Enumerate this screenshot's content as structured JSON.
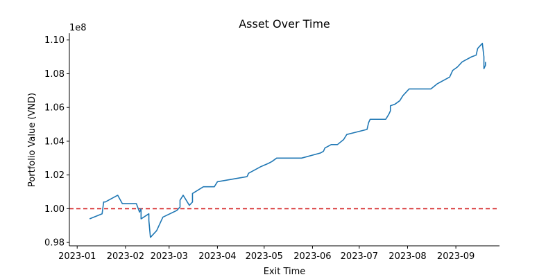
{
  "chart_data": {
    "type": "line",
    "title": "Asset Over Time",
    "xlabel": "Exit Time",
    "ylabel": "Portfolio Value (VND)",
    "y_offset_label": "1e8",
    "y_scale": 100000000,
    "xlim": [
      "2022-12-27",
      "2023-09-29"
    ],
    "ylim": [
      0.978,
      1.104
    ],
    "x_ticks": [
      {
        "date": "2023-01-01",
        "label": "2023-01"
      },
      {
        "date": "2023-02-01",
        "label": "2023-02"
      },
      {
        "date": "2023-03-01",
        "label": "2023-03"
      },
      {
        "date": "2023-04-01",
        "label": "2023-04"
      },
      {
        "date": "2023-05-01",
        "label": "2023-05"
      },
      {
        "date": "2023-06-01",
        "label": "2023-06"
      },
      {
        "date": "2023-07-01",
        "label": "2023-07"
      },
      {
        "date": "2023-08-01",
        "label": "2023-08"
      },
      {
        "date": "2023-09-01",
        "label": "2023-09"
      }
    ],
    "y_ticks": [
      {
        "value": 0.98,
        "label": "0.98"
      },
      {
        "value": 1.0,
        "label": "1.00"
      },
      {
        "value": 1.02,
        "label": "1.02"
      },
      {
        "value": 1.04,
        "label": "1.04"
      },
      {
        "value": 1.06,
        "label": "1.06"
      },
      {
        "value": 1.08,
        "label": "1.08"
      },
      {
        "value": 1.1,
        "label": "1.10"
      }
    ],
    "reference_line": {
      "value": 1.0,
      "color": "#d62728",
      "style": "dashed"
    },
    "grid": false,
    "series": [
      {
        "color": "#1f77b4",
        "points": [
          [
            "2023-01-09",
            0.994
          ],
          [
            "2023-01-17",
            0.997
          ],
          [
            "2023-01-18",
            1.004
          ],
          [
            "2023-01-19",
            1.004
          ],
          [
            "2023-01-27",
            1.008
          ],
          [
            "2023-01-30",
            1.003
          ],
          [
            "2023-02-08",
            1.003
          ],
          [
            "2023-02-10",
            0.998
          ],
          [
            "2023-02-11",
            1.0
          ],
          [
            "2023-02-11",
            0.994
          ],
          [
            "2023-02-16",
            0.997
          ],
          [
            "2023-02-16",
            0.993
          ],
          [
            "2023-02-17",
            0.983
          ],
          [
            "2023-02-21",
            0.987
          ],
          [
            "2023-02-25",
            0.995
          ],
          [
            "2023-03-06",
            0.999
          ],
          [
            "2023-03-08",
            1.001
          ],
          [
            "2023-03-08",
            1.005
          ],
          [
            "2023-03-10",
            1.008
          ],
          [
            "2023-03-12",
            1.005
          ],
          [
            "2023-03-14",
            1.002
          ],
          [
            "2023-03-16",
            1.004
          ],
          [
            "2023-03-16",
            1.009
          ],
          [
            "2023-03-23",
            1.013
          ],
          [
            "2023-03-30",
            1.013
          ],
          [
            "2023-04-01",
            1.016
          ],
          [
            "2023-04-20",
            1.019
          ],
          [
            "2023-04-21",
            1.021
          ],
          [
            "2023-04-29",
            1.025
          ],
          [
            "2023-05-04",
            1.027
          ],
          [
            "2023-05-06",
            1.028
          ],
          [
            "2023-05-09",
            1.03
          ],
          [
            "2023-05-25",
            1.03
          ],
          [
            "2023-06-06",
            1.033
          ],
          [
            "2023-06-08",
            1.034
          ],
          [
            "2023-06-09",
            1.036
          ],
          [
            "2023-06-13",
            1.038
          ],
          [
            "2023-06-17",
            1.038
          ],
          [
            "2023-06-21",
            1.041
          ],
          [
            "2023-06-23",
            1.044
          ],
          [
            "2023-07-06",
            1.047
          ],
          [
            "2023-07-07",
            1.051
          ],
          [
            "2023-07-08",
            1.053
          ],
          [
            "2023-07-15",
            1.053
          ],
          [
            "2023-07-18",
            1.053
          ],
          [
            "2023-07-20",
            1.056
          ],
          [
            "2023-07-21",
            1.058
          ],
          [
            "2023-07-21",
            1.061
          ],
          [
            "2023-07-24",
            1.062
          ],
          [
            "2023-07-27",
            1.064
          ],
          [
            "2023-07-29",
            1.067
          ],
          [
            "2023-08-02",
            1.071
          ],
          [
            "2023-08-11",
            1.071
          ],
          [
            "2023-08-16",
            1.071
          ],
          [
            "2023-08-20",
            1.074
          ],
          [
            "2023-08-24",
            1.076
          ],
          [
            "2023-08-28",
            1.078
          ],
          [
            "2023-08-30",
            1.082
          ],
          [
            "2023-09-02",
            1.084
          ],
          [
            "2023-09-05",
            1.087
          ],
          [
            "2023-09-07",
            1.088
          ],
          [
            "2023-09-11",
            1.09
          ],
          [
            "2023-09-14",
            1.091
          ],
          [
            "2023-09-15",
            1.095
          ],
          [
            "2023-09-17",
            1.097
          ],
          [
            "2023-09-18",
            1.098
          ],
          [
            "2023-09-19",
            1.09
          ],
          [
            "2023-09-19",
            1.083
          ],
          [
            "2023-09-20",
            1.085
          ],
          [
            "2023-09-20",
            1.087
          ]
        ]
      }
    ]
  }
}
